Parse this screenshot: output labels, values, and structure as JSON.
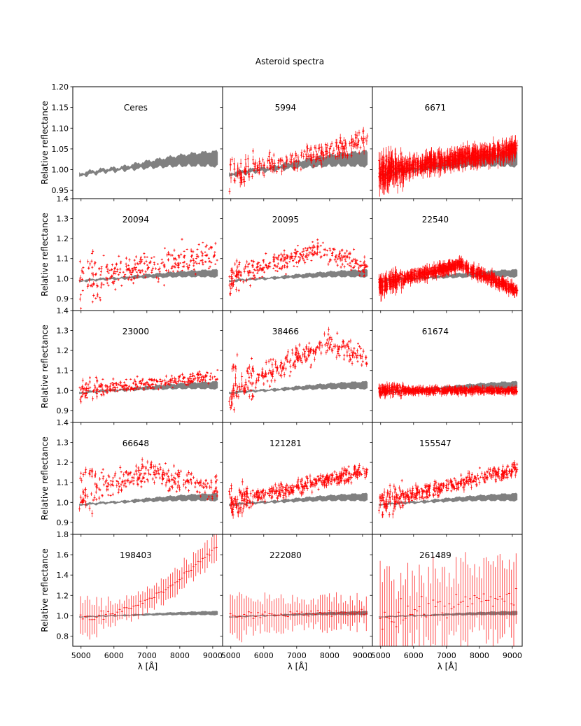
{
  "figure": {
    "title": "Asteroid spectra",
    "xlabel": "λ [Å]",
    "ylabel": "Relative reflectance",
    "colors": {
      "reference": "#808080",
      "measured": "#ff0000",
      "frame": "#000000"
    }
  },
  "chart_data": {
    "type": "scatter",
    "title": "Asteroid spectra",
    "xlabel": "λ [Å]",
    "ylabel": "Relative reflectance",
    "xlim": [
      4750,
      9300
    ],
    "xticks": [
      5000,
      6000,
      7000,
      8000,
      9000
    ],
    "xtick_labels": [
      "5000",
      "6000",
      "7000",
      "8000",
      "9000"
    ],
    "rows": [
      {
        "ylim": [
          0.93,
          1.2
        ],
        "yticks": [
          0.95,
          1.0,
          1.05,
          1.1,
          1.15,
          1.2
        ],
        "ytick_labels": [
          "0.95",
          "1.00",
          "1.05",
          "1.10",
          "1.15",
          "1.20"
        ]
      },
      {
        "ylim": [
          0.84,
          1.4
        ],
        "yticks": [
          0.9,
          1.0,
          1.1,
          1.2,
          1.3,
          1.4
        ],
        "ytick_labels": [
          "0.9",
          "1.0",
          "1.1",
          "1.2",
          "1.3",
          "1.4"
        ]
      },
      {
        "ylim": [
          0.84,
          1.4
        ],
        "yticks": [
          0.9,
          1.0,
          1.1,
          1.2,
          1.3,
          1.4
        ],
        "ytick_labels": [
          "0.9",
          "1.0",
          "1.1",
          "1.2",
          "1.3",
          "1.4"
        ]
      },
      {
        "ylim": [
          0.84,
          1.4
        ],
        "yticks": [
          0.9,
          1.0,
          1.1,
          1.2,
          1.3,
          1.4
        ],
        "ytick_labels": [
          "0.9",
          "1.0",
          "1.1",
          "1.2",
          "1.3",
          "1.4"
        ]
      },
      {
        "ylim": [
          0.7,
          1.8
        ],
        "yticks": [
          0.8,
          1.0,
          1.2,
          1.4,
          1.6,
          1.8
        ],
        "ytick_labels": [
          "0.8",
          "1.0",
          "1.2",
          "1.4",
          "1.6",
          "1.8"
        ]
      }
    ],
    "reference_series": {
      "name": "Ceres",
      "x": [
        4950,
        5100,
        5300,
        5500,
        5700,
        6000,
        6300,
        6600,
        7000,
        7400,
        7800,
        8200,
        8600,
        9000,
        9150
      ],
      "y": [
        0.985,
        0.99,
        0.993,
        0.995,
        0.998,
        1.0,
        1.003,
        1.007,
        1.012,
        1.016,
        1.02,
        1.023,
        1.025,
        1.026,
        1.025
      ]
    },
    "panels": [
      {
        "name": "Ceres",
        "row": 0,
        "col": 0,
        "shape": "none",
        "start": 1.0,
        "end": 1.0,
        "peak_x": 7000,
        "peak_y": 1.0,
        "scatter": 0,
        "err": 0,
        "n": 0,
        "style": "dense"
      },
      {
        "name": "5994",
        "row": 0,
        "col": 1,
        "shape": "linear",
        "start": 0.985,
        "end": 1.07,
        "peak_x": 7000,
        "peak_y": 1.0,
        "scatter": 0.025,
        "err": 0.007,
        "n": 240,
        "style": "dense"
      },
      {
        "name": "6671",
        "row": 0,
        "col": 2,
        "shape": "linear",
        "start": 0.995,
        "end": 1.05,
        "peak_x": 7000,
        "peak_y": 1.0,
        "scatter": 0.018,
        "err": 0.014,
        "n": 700,
        "style": "dense"
      },
      {
        "name": "20094",
        "row": 1,
        "col": 0,
        "shape": "linear",
        "start": 1.0,
        "end": 1.12,
        "peak_x": 7000,
        "peak_y": 1.0,
        "scatter": 0.07,
        "err": 0.006,
        "n": 300,
        "style": "dense"
      },
      {
        "name": "20095",
        "row": 1,
        "col": 1,
        "shape": "peak",
        "start": 1.0,
        "end": 1.05,
        "peak_x": 7700,
        "peak_y": 1.15,
        "scatter": 0.045,
        "err": 0.006,
        "n": 350,
        "style": "dense"
      },
      {
        "name": "22540",
        "row": 1,
        "col": 2,
        "shape": "peak",
        "start": 0.97,
        "end": 0.94,
        "peak_x": 7400,
        "peak_y": 1.07,
        "scatter": 0.022,
        "err": 0.02,
        "n": 700,
        "style": "dense"
      },
      {
        "name": "23000",
        "row": 2,
        "col": 0,
        "shape": "linear",
        "start": 1.0,
        "end": 1.07,
        "peak_x": 7000,
        "peak_y": 1.0,
        "scatter": 0.03,
        "err": 0.006,
        "n": 300,
        "style": "dense"
      },
      {
        "name": "38466",
        "row": 2,
        "col": 1,
        "shape": "peak",
        "start": 1.0,
        "end": 1.16,
        "peak_x": 8000,
        "peak_y": 1.24,
        "scatter": 0.06,
        "err": 0.01,
        "n": 300,
        "style": "dense"
      },
      {
        "name": "61674",
        "row": 2,
        "col": 2,
        "shape": "linear",
        "start": 1.0,
        "end": 1.0,
        "peak_x": 7000,
        "peak_y": 1.0,
        "scatter": 0.015,
        "err": 0.012,
        "n": 700,
        "style": "dense"
      },
      {
        "name": "66648",
        "row": 3,
        "col": 0,
        "shape": "peak",
        "start": 1.05,
        "end": 1.07,
        "peak_x": 7000,
        "peak_y": 1.15,
        "scatter": 0.06,
        "err": 0.008,
        "n": 300,
        "style": "dense"
      },
      {
        "name": "121281",
        "row": 3,
        "col": 1,
        "shape": "linear",
        "start": 1.0,
        "end": 1.16,
        "peak_x": 7000,
        "peak_y": 1.0,
        "scatter": 0.035,
        "err": 0.01,
        "n": 400,
        "style": "dense"
      },
      {
        "name": "155547",
        "row": 3,
        "col": 2,
        "shape": "linear",
        "start": 1.0,
        "end": 1.17,
        "peak_x": 7000,
        "peak_y": 1.0,
        "scatter": 0.035,
        "err": 0.01,
        "n": 400,
        "style": "dense"
      },
      {
        "name": "198403",
        "row": 4,
        "col": 0,
        "shape": "curve",
        "start": 0.98,
        "end": 1.7,
        "peak_x": 7000,
        "peak_y": 1.0,
        "scatter": 0.03,
        "err": 0.1,
        "n": 60,
        "style": "sparse"
      },
      {
        "name": "222080",
        "row": 4,
        "col": 1,
        "shape": "linear",
        "start": 1.0,
        "end": 1.03,
        "peak_x": 7000,
        "peak_y": 1.0,
        "scatter": 0.03,
        "err": 0.13,
        "n": 60,
        "style": "sparse"
      },
      {
        "name": "261489",
        "row": 4,
        "col": 2,
        "shape": "linear",
        "start": 1.0,
        "end": 1.2,
        "peak_x": 7000,
        "peak_y": 1.0,
        "scatter": 0.1,
        "err": 0.3,
        "n": 60,
        "style": "sparse"
      }
    ]
  }
}
